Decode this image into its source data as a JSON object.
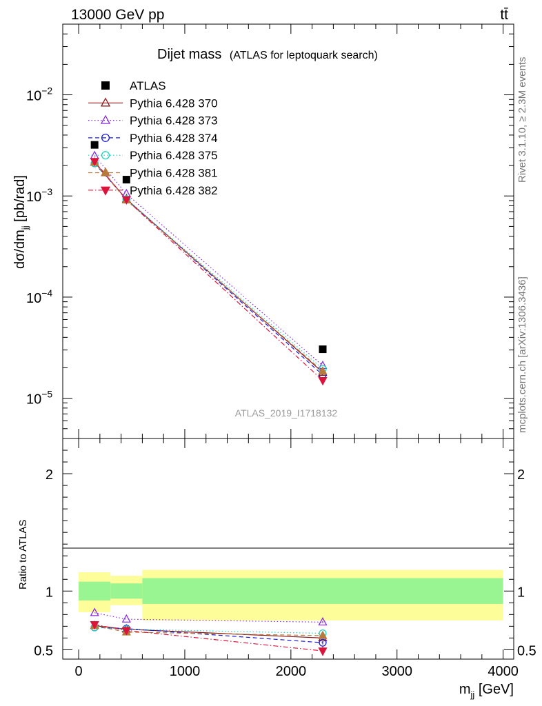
{
  "header": {
    "energy_label": "13000 GeV pp",
    "process_label": "tt̄"
  },
  "side_labels": {
    "rivet": "Rivet 3.1.10, ≥ 2.3M events",
    "mcplots": "mcplots.cern.ch [arXiv:1306.3436]"
  },
  "chart_data": [
    {
      "type": "scatter",
      "panel": "main",
      "title": "Dijet mass",
      "subtitle": "(ATLAS for leptoquark search)",
      "analysis_id": "ATLAS_2019_I1718132",
      "ylabel": "dσ/dm_jj [pb/rad]",
      "yscale": "log",
      "ylim": [
        4e-06,
        0.05
      ],
      "xlim": [
        -150,
        4100
      ],
      "yticks": [
        {
          "value": 1e-05,
          "mant": "10",
          "exp": "−5"
        },
        {
          "value": 0.0001,
          "mant": "10",
          "exp": "−4"
        },
        {
          "value": 0.001,
          "mant": "10",
          "exp": "−3"
        },
        {
          "value": 0.01,
          "mant": "10",
          "exp": "−2"
        }
      ],
      "legend_position": "top-left",
      "x": [
        150,
        450,
        2300
      ],
      "series": [
        {
          "name": "ATLAS",
          "values": [
            0.0032,
            0.00145,
            3.05e-05
          ],
          "color": "#000000",
          "marker": "square-filled",
          "line": "none"
        },
        {
          "name": "Pythia 6.428 370",
          "values": [
            0.00215,
            0.00093,
            1.8e-05
          ],
          "color": "#8b1a1a",
          "marker": "triangle-open",
          "line": "solid"
        },
        {
          "name": "Pythia 6.428 373",
          "values": [
            0.0025,
            0.00105,
            2.1e-05
          ],
          "color": "#8a2be2",
          "marker": "triangle-open",
          "line": "dotted"
        },
        {
          "name": "Pythia 6.428 374",
          "values": [
            0.0021,
            0.00093,
            1.7e-05
          ],
          "color": "#1a1adb",
          "marker": "circle-open",
          "line": "dashed"
        },
        {
          "name": "Pythia 6.428 375",
          "values": [
            0.0021,
            0.00093,
            1.95e-05
          ],
          "color": "#20d4c0",
          "marker": "circle-open",
          "line": "dotted"
        },
        {
          "name": "Pythia 6.428 381",
          "values": [
            0.00215,
            0.00091,
            1.85e-05
          ],
          "color": "#b87a3c",
          "marker": "triangle-filled",
          "line": "dashed"
        },
        {
          "name": "Pythia 6.428 382",
          "values": [
            0.0022,
            0.00092,
            1.5e-05
          ],
          "color": "#dc143c",
          "marker": "triangle-down-filled",
          "line": "dashdot"
        }
      ]
    },
    {
      "type": "scatter",
      "panel": "ratio",
      "ylabel": "Ratio to ATLAS",
      "xlabel": "m_jj [GeV]",
      "ylim": [
        0.42,
        2.3
      ],
      "xlim": [
        -150,
        4100
      ],
      "yticks": [
        0.5,
        1,
        2
      ],
      "xticks": [
        0,
        1000,
        2000,
        3000,
        4000
      ],
      "bands": [
        {
          "x": [
            0,
            300
          ],
          "inner": [
            0.92,
            1.08
          ],
          "outer": [
            0.82,
            1.16
          ]
        },
        {
          "x": [
            300,
            600
          ],
          "inner": [
            0.935,
            1.065
          ],
          "outer": [
            0.88,
            1.13
          ]
        },
        {
          "x": [
            600,
            4000
          ],
          "inner": [
            0.89,
            1.11
          ],
          "outer": [
            0.75,
            1.18
          ]
        }
      ],
      "band_colors": {
        "inner": "#99f591",
        "outer": "#fdfd99"
      },
      "x": [
        150,
        450,
        2300
      ],
      "series": [
        {
          "name": "Pythia 6.428 370",
          "values": [
            0.705,
            0.675,
            0.6
          ],
          "err": [
            0.0,
            0.0,
            0.0
          ]
        },
        {
          "name": "Pythia 6.428 373",
          "values": [
            0.815,
            0.76,
            0.735
          ],
          "err": [
            0.0,
            0.0,
            0.01
          ]
        },
        {
          "name": "Pythia 6.428 374",
          "values": [
            0.69,
            0.68,
            0.56
          ],
          "err": [
            0.0,
            0.0,
            0.015
          ]
        },
        {
          "name": "Pythia 6.428 375",
          "values": [
            0.69,
            0.675,
            0.64
          ],
          "err": [
            0.0,
            0.0,
            0.01
          ]
        },
        {
          "name": "Pythia 6.428 381",
          "values": [
            0.705,
            0.65,
            0.62
          ],
          "err": [
            0.0,
            0.0,
            0.02
          ]
        },
        {
          "name": "Pythia 6.428 382",
          "values": [
            0.715,
            0.665,
            0.49
          ],
          "err": [
            0.0,
            0.0,
            0.04
          ]
        }
      ]
    }
  ]
}
